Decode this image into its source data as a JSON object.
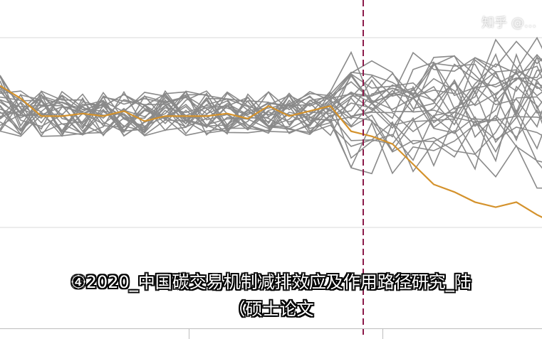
{
  "caption": {
    "line1": "④2020_中国碳交易机制减排效应及作用路径研究_陆",
    "line2": "（硕士论文"
  },
  "watermark": {
    "text": "知乎 @..."
  },
  "colors": {
    "treated": "#d4922c",
    "placebo": "#8a8a8a",
    "vline": "#8b1a4a",
    "grid": "#e6e6e6"
  },
  "chart_data": {
    "type": "line",
    "title": "",
    "xlabel": "",
    "ylabel": "",
    "xlim": [
      0,
      30
    ],
    "ylim": [
      -3.5,
      2.0
    ],
    "hlines": [
      1.5,
      -2.25
    ],
    "vline_x": 17,
    "treated_series": [
      0.55,
      0.3,
      -0.05,
      -0.05,
      0.0,
      -0.05,
      0.05,
      -0.15,
      -0.05,
      -0.05,
      -0.05,
      0.0,
      -0.1,
      0.15,
      -0.05,
      0.05,
      0.15,
      -0.35,
      -0.45,
      -0.6,
      -1.0,
      -1.4,
      -1.55,
      -1.75,
      -1.85,
      -1.75,
      -2.0,
      -2.2
    ]
  }
}
